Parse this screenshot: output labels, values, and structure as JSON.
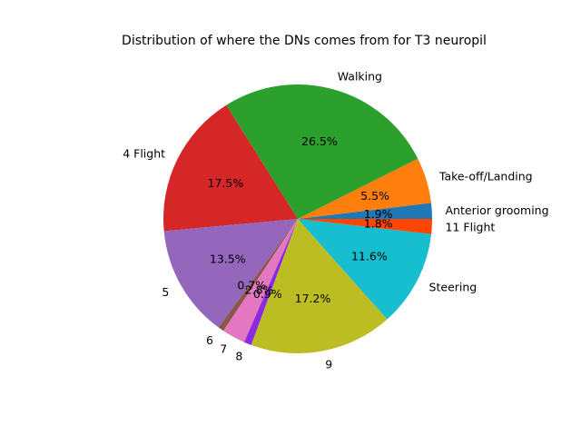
{
  "chart_data": {
    "type": "pie",
    "title": "Distribution of where the DNs comes from for T3 neuropil",
    "slices": [
      {
        "label": "Anterior grooming",
        "value": 1.9,
        "pct_label": "1.9%",
        "color": "#1f77b4"
      },
      {
        "label": "Take-off/Landing",
        "value": 5.5,
        "pct_label": "5.5%",
        "color": "#ff7f0e"
      },
      {
        "label": "Walking",
        "value": 26.5,
        "pct_label": "26.5%",
        "color": "#2ca02c"
      },
      {
        "label": "4 Flight",
        "value": 17.5,
        "pct_label": "17.5%",
        "color": "#d62728"
      },
      {
        "label": "5",
        "value": 13.5,
        "pct_label": "13.5%",
        "color": "#9467bd"
      },
      {
        "label": "6",
        "value": 0.7,
        "pct_label": "0.7%",
        "color": "#8c564b"
      },
      {
        "label": "7",
        "value": 2.8,
        "pct_label": "2.8%",
        "color": "#e377c2"
      },
      {
        "label": "8",
        "value": 0.9,
        "pct_label": "0.9%",
        "color": "#8a2be2"
      },
      {
        "label": "9",
        "value": 17.2,
        "pct_label": "17.2%",
        "color": "#bcbd22"
      },
      {
        "label": "Steering",
        "value": 11.6,
        "pct_label": "11.6%",
        "color": "#17becf"
      },
      {
        "label": "11 Flight",
        "value": 1.8,
        "pct_label": "1.8%",
        "color": "#ff4500"
      }
    ],
    "start_angle_deg": 0,
    "direction": "counterclockwise"
  }
}
